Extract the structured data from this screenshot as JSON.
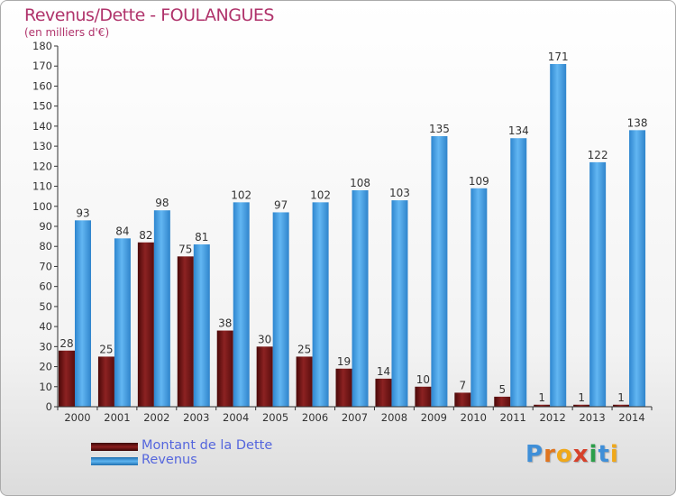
{
  "colors": {
    "dette": "#7a1a1a",
    "revenus": "#3f9be0",
    "title": "#b0336b",
    "legend_text": "#5566dd"
  },
  "chart_data": {
    "type": "bar",
    "title": "Revenus/Dette - FOULANGUES",
    "subtitle": "(en milliers d'€)",
    "xlabel": "",
    "ylabel": "",
    "ylim": [
      0,
      180
    ],
    "yticks": [
      0,
      10,
      20,
      30,
      40,
      50,
      60,
      70,
      80,
      90,
      100,
      110,
      120,
      130,
      140,
      150,
      160,
      170,
      180
    ],
    "grid": false,
    "legend_position": "bottom-left",
    "categories": [
      "2000",
      "2001",
      "2002",
      "2003",
      "2004",
      "2005",
      "2006",
      "2007",
      "2008",
      "2009",
      "2010",
      "2011",
      "2012",
      "2013",
      "2014"
    ],
    "series": [
      {
        "name": "Montant de la Dette",
        "values": [
          28,
          25,
          82,
          75,
          38,
          30,
          25,
          19,
          14,
          10,
          7,
          5,
          1,
          1,
          1
        ]
      },
      {
        "name": "Revenus",
        "values": [
          93,
          84,
          98,
          81,
          102,
          97,
          102,
          108,
          103,
          135,
          109,
          134,
          171,
          122,
          138
        ]
      }
    ]
  },
  "logo": {
    "text": "Proxiti"
  }
}
